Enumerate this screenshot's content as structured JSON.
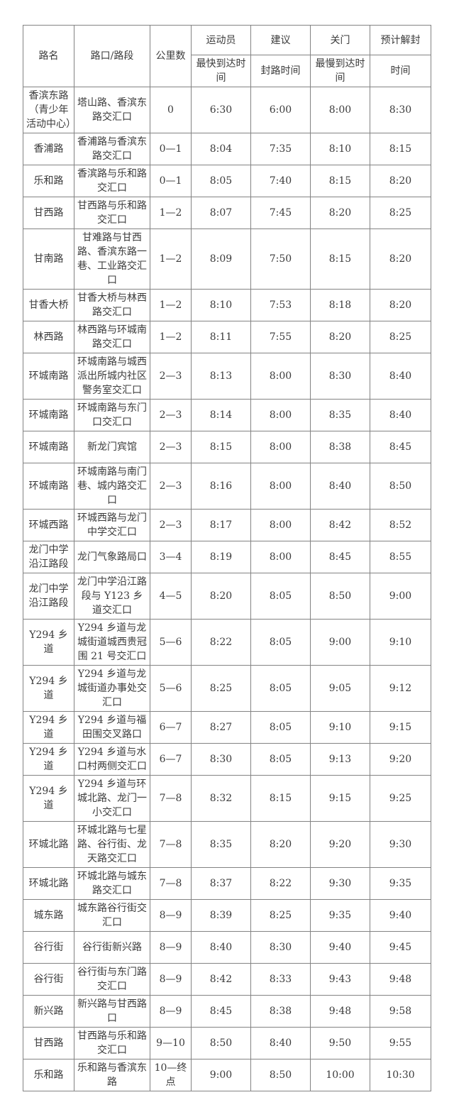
{
  "colors": {
    "background": "#ffffff",
    "border": "#838383",
    "text": "#3b3b3b"
  },
  "table": {
    "header": {
      "road": "路名",
      "section": "路口/路段",
      "km": "公里数",
      "fastest_top": "运动员",
      "fastest_bottom": "最快到达时间",
      "suggested_top": "建议",
      "suggested_bottom": "封路时间",
      "gate_top": "关门",
      "gate_bottom": "最慢到达时间",
      "unseal_top": "预计解封",
      "unseal_bottom": "时间"
    },
    "rows": [
      {
        "road": "香滨东路（青少年活动中心）",
        "section": "塔山路、香滨东路交汇口",
        "km": "0",
        "fastest": "6:30",
        "suggested": "6:00",
        "gate": "8:00",
        "unseal": "8:30"
      },
      {
        "road": "香浦路",
        "section": "香浦路与香滨东路交汇口",
        "km": "0—1",
        "fastest": "8:04",
        "suggested": "7:35",
        "gate": "8:10",
        "unseal": "8:15"
      },
      {
        "road": "乐和路",
        "section": "香滨路与乐和路交汇口",
        "km": "0—1",
        "fastest": "8:05",
        "suggested": "7:40",
        "gate": "8:15",
        "unseal": "8:20"
      },
      {
        "road": "甘西路",
        "section": "甘西路与乐和路交汇口",
        "km": "1—2",
        "fastest": "8:07",
        "suggested": "7:45",
        "gate": "8:20",
        "unseal": "8:25"
      },
      {
        "road": "甘南路",
        "section": "甘难路与甘西路、香滨东路一巷、工业路交汇口",
        "km": "1—2",
        "fastest": "8:09",
        "suggested": "7:50",
        "gate": "8:15",
        "unseal": "8:20"
      },
      {
        "road": "甘香大桥",
        "section": "甘香大桥与林西路交汇口",
        "km": "1—2",
        "fastest": "8:10",
        "suggested": "7:53",
        "gate": "8:18",
        "unseal": "8:20"
      },
      {
        "road": "林西路",
        "section": "林西路与环城南路交汇口",
        "km": "1—2",
        "fastest": "8:11",
        "suggested": "7:55",
        "gate": "8:20",
        "unseal": "8:25"
      },
      {
        "road": "环城南路",
        "section": "环城南路与城西派出所城内社区警务室交汇口",
        "km": "2—3",
        "fastest": "8:13",
        "suggested": "8:00",
        "gate": "8:30",
        "unseal": "8:40"
      },
      {
        "road": "环城南路",
        "section": "环城南路与东门口交汇口",
        "km": "2—3",
        "fastest": "8:14",
        "suggested": "8:00",
        "gate": "8:35",
        "unseal": "8:40"
      },
      {
        "road": "环城南路",
        "section": "新龙门宾馆",
        "km": "2—3",
        "fastest": "8:15",
        "suggested": "8:00",
        "gate": "8:38",
        "unseal": "8:45"
      },
      {
        "road": "环城南路",
        "section": "环城南路与南门巷、城内路交汇口",
        "km": "2—3",
        "fastest": "8:16",
        "suggested": "8:00",
        "gate": "8:40",
        "unseal": "8:50"
      },
      {
        "road": "环城西路",
        "section": "环城西路与龙门中学交汇口",
        "km": "2—3",
        "fastest": "8:17",
        "suggested": "8:00",
        "gate": "8:42",
        "unseal": "8:52"
      },
      {
        "road": "龙门中学沿江路段",
        "section": "龙门气象路局口",
        "km": "3—4",
        "fastest": "8:19",
        "suggested": "8:00",
        "gate": "8:45",
        "unseal": "8:55"
      },
      {
        "road": "龙门中学沿江路段",
        "section": "龙门中学沿江路段与 Y123 乡道交汇口",
        "km": "4—5",
        "fastest": "8:20",
        "suggested": "8:05",
        "gate": "8:50",
        "unseal": "9:00"
      },
      {
        "road": "Y294 乡道",
        "section": "Y294 乡道与龙城街道城西贵冠围 21 号交汇口",
        "km": "5—6",
        "fastest": "8:22",
        "suggested": "8:05",
        "gate": "9:00",
        "unseal": "9:10"
      },
      {
        "road": "Y294 乡道",
        "section": "Y294 乡道与龙城街道办事处交汇口",
        "km": "5—6",
        "fastest": "8:25",
        "suggested": "8:05",
        "gate": "9:05",
        "unseal": "9:12"
      },
      {
        "road": "Y294 乡道",
        "section": "Y294 乡道与福田围交叉路口",
        "km": "6—7",
        "fastest": "8:27",
        "suggested": "8:05",
        "gate": "9:10",
        "unseal": "9:15"
      },
      {
        "road": "Y294 乡道",
        "section": "Y294 乡道与水口村两侧交汇口",
        "km": "6—7",
        "fastest": "8:30",
        "suggested": "8:05",
        "gate": "9:13",
        "unseal": "9:20"
      },
      {
        "road": "Y294 乡道",
        "section": "Y294 乡道与环城北路、龙门一小交汇口",
        "km": "7—8",
        "fastest": "8:32",
        "suggested": "8:15",
        "gate": "9:15",
        "unseal": "9:25"
      },
      {
        "road": "环城北路",
        "section": "环城北路与七星路、谷行街、龙天路交汇口",
        "km": "7—8",
        "fastest": "8:35",
        "suggested": "8:20",
        "gate": "9:20",
        "unseal": "9:30"
      },
      {
        "road": "环城北路",
        "section": "环城北路与城东路交汇口",
        "km": "7—8",
        "fastest": "8:37",
        "suggested": "8:22",
        "gate": "9:30",
        "unseal": "9:35"
      },
      {
        "road": "城东路",
        "section": "城东路谷行街交汇口",
        "km": "8—9",
        "fastest": "8:39",
        "suggested": "8:25",
        "gate": "9:35",
        "unseal": "9:40"
      },
      {
        "road": "谷行街",
        "section": "谷行街新兴路",
        "km": "8—9",
        "fastest": "8:40",
        "suggested": "8:30",
        "gate": "9:40",
        "unseal": "9:45"
      },
      {
        "road": "谷行街",
        "section": "谷行街与东门路交汇口",
        "km": "8—9",
        "fastest": "8:42",
        "suggested": "8:33",
        "gate": "9:43",
        "unseal": "9:48"
      },
      {
        "road": "新兴路",
        "section": "新兴路与甘西路口",
        "km": "8—9",
        "fastest": "8:45",
        "suggested": "8:38",
        "gate": "9:48",
        "unseal": "9:58"
      },
      {
        "road": "甘西路",
        "section": "甘西路与乐和路交汇口",
        "km": "9—10",
        "fastest": "8:50",
        "suggested": "8:40",
        "gate": "9:50",
        "unseal": "9:55"
      },
      {
        "road": "乐和路",
        "section": "乐和路与香滨东路",
        "km": "10—终点",
        "fastest": "9:00",
        "suggested": "8:50",
        "gate": "10:00",
        "unseal": "10:30"
      }
    ]
  }
}
